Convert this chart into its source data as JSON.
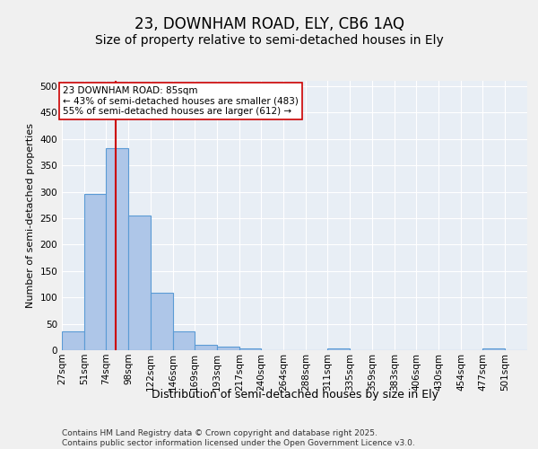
{
  "title1": "23, DOWNHAM ROAD, ELY, CB6 1AQ",
  "title2": "Size of property relative to semi-detached houses in Ely",
  "xlabel": "Distribution of semi-detached houses by size in Ely",
  "ylabel": "Number of semi-detached properties",
  "bin_labels": [
    "27sqm",
    "51sqm",
    "74sqm",
    "98sqm",
    "122sqm",
    "146sqm",
    "169sqm",
    "193sqm",
    "217sqm",
    "240sqm",
    "264sqm",
    "288sqm",
    "311sqm",
    "335sqm",
    "359sqm",
    "383sqm",
    "406sqm",
    "430sqm",
    "454sqm",
    "477sqm",
    "501sqm"
  ],
  "bin_edges": [
    27,
    51,
    74,
    98,
    122,
    146,
    169,
    193,
    217,
    240,
    264,
    288,
    311,
    335,
    359,
    383,
    406,
    430,
    454,
    477,
    501,
    525
  ],
  "bar_values": [
    35,
    295,
    383,
    255,
    108,
    35,
    10,
    6,
    4,
    0,
    0,
    0,
    4,
    0,
    0,
    0,
    0,
    0,
    0,
    4,
    0
  ],
  "bar_color": "#aec6e8",
  "bar_edge_color": "#5b9bd5",
  "property_size": 85,
  "vline_color": "#cc0000",
  "annotation_text": "23 DOWNHAM ROAD: 85sqm\n← 43% of semi-detached houses are smaller (483)\n55% of semi-detached houses are larger (612) →",
  "annotation_box_color": "#ffffff",
  "annotation_box_edge": "#cc0000",
  "ylim": [
    0,
    510
  ],
  "yticks": [
    0,
    50,
    100,
    150,
    200,
    250,
    300,
    350,
    400,
    450,
    500
  ],
  "background_color": "#e8eef5",
  "fig_background": "#f0f0f0",
  "footer_text": "Contains HM Land Registry data © Crown copyright and database right 2025.\nContains public sector information licensed under the Open Government Licence v3.0.",
  "title1_fontsize": 12,
  "title2_fontsize": 10,
  "xlabel_fontsize": 9,
  "ylabel_fontsize": 8,
  "tick_fontsize": 7.5,
  "annotation_fontsize": 7.5,
  "footer_fontsize": 6.5
}
